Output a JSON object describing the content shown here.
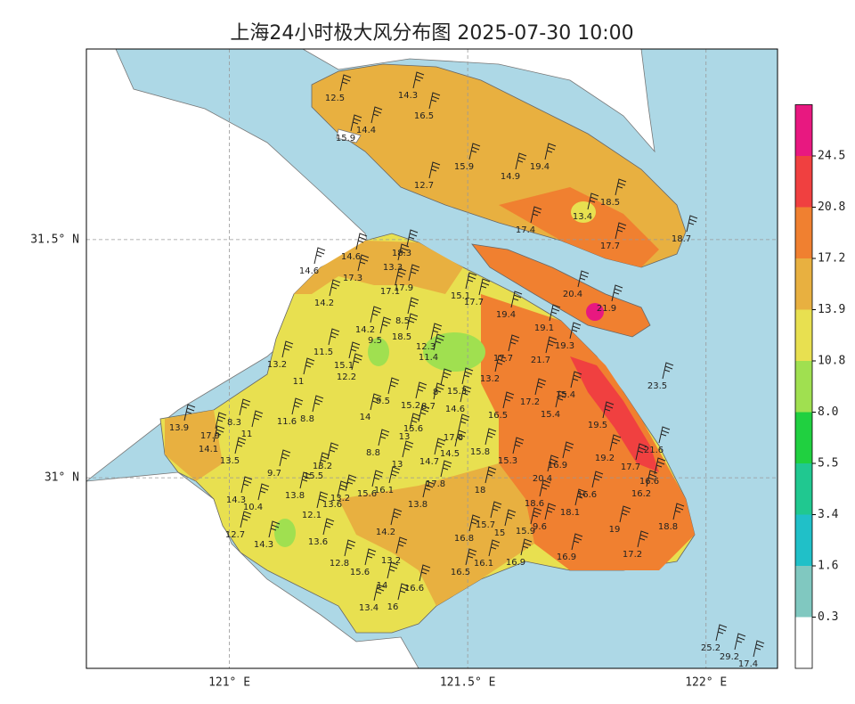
{
  "chart_data": {
    "type": "map",
    "title": "上海24小时极大风分布图 2025-07-30 10:00",
    "xlim": [
      120.7,
      122.15
    ],
    "ylim": [
      30.6,
      31.9
    ],
    "xticks": [
      {
        "value": 121,
        "label": "121° E"
      },
      {
        "value": 121.5,
        "label": "121.5° E"
      },
      {
        "value": 122,
        "label": "122° E"
      }
    ],
    "yticks": [
      {
        "value": 31,
        "label": "31° N"
      },
      {
        "value": 31.5,
        "label": "31.5° N"
      }
    ],
    "grid": true,
    "colorbar": {
      "ticks": [
        0.3,
        1.6,
        3.4,
        5.5,
        {
          "value": 8,
          "label": "8.0"
        },
        10.8,
        13.9,
        17.2,
        20.8,
        24.5
      ],
      "colors": [
        "#ffffff",
        "#80c8c0",
        "#20c0c8",
        "#20c890",
        "#20d040",
        "#a0e050",
        "#e8e050",
        "#e8b040",
        "#f08030",
        "#f04040",
        "#e81880"
      ]
    },
    "stations": [
      12.5,
      14.3,
      16.5,
      14.4,
      15.9,
      15.9,
      14.9,
      19.4,
      12.7,
      13.4,
      18.5,
      17.4,
      17.7,
      18.7,
      14.6,
      14.6,
      17.3,
      18.3,
      13.3,
      14.2,
      17.1,
      17.9,
      15.1,
      17.7,
      19.4,
      20.4,
      21.9,
      8.5,
      14.2,
      9.5,
      18.5,
      19.1,
      19.3,
      21.7,
      23.5,
      13.2,
      11.5,
      15.1,
      12.2,
      11.0,
      12.3,
      11.4,
      17.7,
      13.2,
      15.4,
      15.3,
      8.0,
      15.2,
      8.7,
      14.6,
      17.2,
      15.4,
      16.5,
      9.5,
      14.0,
      11.6,
      8.8,
      8.3,
      13.9,
      17.9,
      11.0,
      15.6,
      13.0,
      17.6,
      19.5,
      14.1,
      13.5,
      8.8,
      14.5,
      15.8,
      14.7,
      15.3,
      21.6,
      19.2,
      13.2,
      13.0,
      16.9,
      17.7,
      9.7,
      15.5,
      17.8,
      20.4,
      16.6,
      18.0,
      16.6,
      16.2,
      13.8,
      15.6,
      16.1,
      13.2,
      13.6,
      14.3,
      10.4,
      13.8,
      18.6,
      18.1,
      12.1,
      15.7,
      9.6,
      15.9,
      15.0,
      19.0,
      18.8,
      12.7,
      16.8,
      14.2,
      14.3,
      13.6,
      17.2,
      16.9,
      12.8,
      13.2,
      16.1,
      16.9,
      16.5,
      15.6,
      14.0,
      16.6,
      16.0,
      13.4,
      25.2,
      29.2,
      17.4
    ]
  }
}
